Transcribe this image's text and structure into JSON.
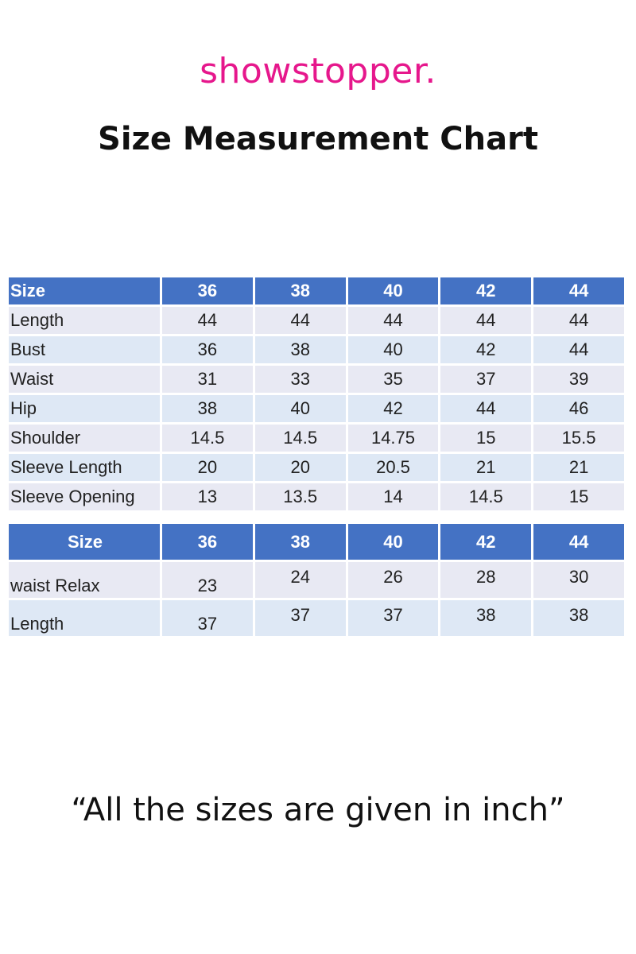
{
  "brand": "showstopper.",
  "title": "Size Measurement Chart",
  "table1": {
    "header": [
      "Size",
      "36",
      "38",
      "40",
      "42",
      "44"
    ],
    "rows": [
      [
        "Length",
        "44",
        "44",
        "44",
        "44",
        "44"
      ],
      [
        "Bust",
        "36",
        "38",
        "40",
        "42",
        "44"
      ],
      [
        "Waist",
        "31",
        "33",
        "35",
        "37",
        "39"
      ],
      [
        "Hip",
        "38",
        "40",
        "42",
        "44",
        "46"
      ],
      [
        "Shoulder",
        "14.5",
        "14.5",
        "14.75",
        "15",
        "15.5"
      ],
      [
        "Sleeve Length",
        "20",
        "20",
        "20.5",
        "21",
        "21"
      ],
      [
        "Sleeve Opening",
        "13",
        "13.5",
        "14",
        "14.5",
        "15"
      ]
    ]
  },
  "table2": {
    "header": [
      "Size",
      "36",
      "38",
      "40",
      "42",
      "44"
    ],
    "rows": [
      [
        "waist Relax",
        "23",
        "24",
        "26",
        "28",
        "30"
      ],
      [
        "Length",
        "37",
        "37",
        "37",
        "38",
        "38"
      ]
    ]
  },
  "note": "“All the  sizes are given in inch”",
  "colors": {
    "brand": "#e6178c",
    "header": "#4472c4",
    "row_odd": "#e8e9f3",
    "row_even": "#dee8f5"
  }
}
